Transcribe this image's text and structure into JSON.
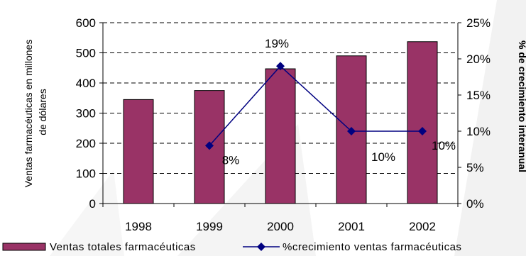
{
  "chart_data": {
    "type": "bar",
    "categories": [
      "1998",
      "1999",
      "2000",
      "2001",
      "2002"
    ],
    "series": [
      {
        "name": "Ventas totales farmacéuticas",
        "type": "bar",
        "axis": "left",
        "values": [
          345,
          375,
          447,
          490,
          537
        ]
      },
      {
        "name": "%crecimiento ventas farmacéuticas",
        "type": "line",
        "axis": "right",
        "values": [
          null,
          8,
          19,
          10,
          10
        ],
        "data_labels": [
          null,
          "8%",
          "19%",
          "10%",
          "10%"
        ]
      }
    ],
    "y_left": {
      "label_lines": [
        "Ventas farmacéuticas  en millones",
        "de dólares"
      ],
      "lim": [
        0,
        600
      ],
      "ticks": [
        0,
        100,
        200,
        300,
        400,
        500,
        600
      ],
      "tick_labels": [
        "0",
        "100",
        "200",
        "300",
        "400",
        "500",
        "600"
      ]
    },
    "y_right": {
      "label": "% de crecimiento interanual",
      "lim": [
        0,
        25
      ],
      "ticks": [
        0,
        5,
        10,
        15,
        20,
        25
      ],
      "tick_labels": [
        "0%",
        "5%",
        "10%",
        "15%",
        "20%",
        "25%"
      ]
    },
    "grid": "horizontal-dashed",
    "legend_position": "bottom",
    "colors": {
      "bar": "#993366",
      "line": "#000080",
      "grid": "#000000",
      "axis": "#000000",
      "background": "#ffffff"
    }
  }
}
